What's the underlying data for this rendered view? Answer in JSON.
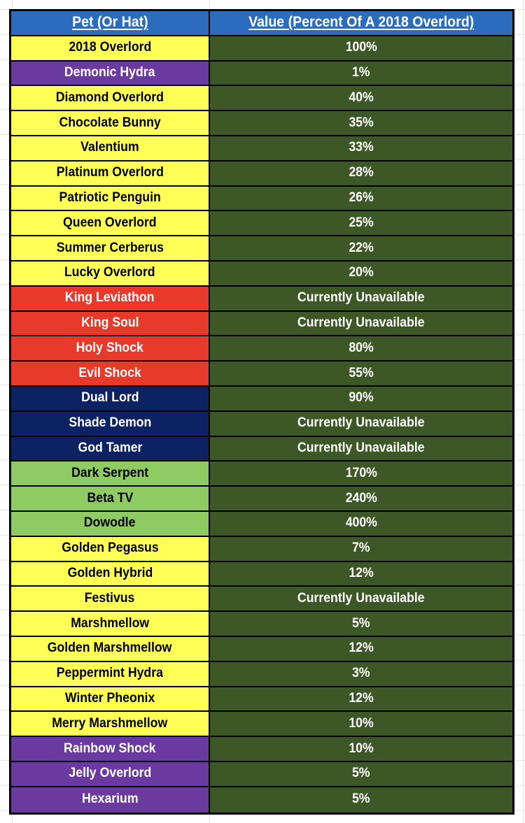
{
  "sheet": {
    "background": "#ffffff",
    "gridline_color": "#e2e2e2",
    "border_color": "#000000"
  },
  "table": {
    "header": {
      "pet_label": "Pet (Or Hat)",
      "value_label": "Value (Percent Of A 2018 Overlord)",
      "background": "#2b6cbe",
      "text_color": "#ffffff"
    },
    "value_column": {
      "background": "#3d5727",
      "text_color": "#ffffff"
    },
    "palette": {
      "yellow": {
        "bg": "#ffff55",
        "text": "#000000"
      },
      "purple": {
        "bg": "#6b3aa0",
        "text": "#ffffff"
      },
      "red": {
        "bg": "#e8392b",
        "text": "#ffffff"
      },
      "navy": {
        "bg": "#0d2262",
        "text": "#ffffff"
      },
      "green": {
        "bg": "#8ecb63",
        "text": "#000000"
      }
    },
    "rows": [
      {
        "pet": "2018 Overlord",
        "value": "100%",
        "color": "yellow"
      },
      {
        "pet": "Demonic Hydra",
        "value": "1%",
        "color": "purple"
      },
      {
        "pet": "Diamond Overlord",
        "value": "40%",
        "color": "yellow"
      },
      {
        "pet": "Chocolate Bunny",
        "value": "35%",
        "color": "yellow"
      },
      {
        "pet": "Valentium",
        "value": "33%",
        "color": "yellow"
      },
      {
        "pet": "Platinum Overlord",
        "value": "28%",
        "color": "yellow"
      },
      {
        "pet": "Patriotic Penguin",
        "value": "26%",
        "color": "yellow"
      },
      {
        "pet": "Queen Overlord",
        "value": "25%",
        "color": "yellow"
      },
      {
        "pet": "Summer Cerberus",
        "value": "22%",
        "color": "yellow"
      },
      {
        "pet": "Lucky Overlord",
        "value": "20%",
        "color": "yellow"
      },
      {
        "pet": "King Leviathon",
        "value": "Currently Unavailable",
        "color": "red"
      },
      {
        "pet": "King Soul",
        "value": "Currently Unavailable",
        "color": "red"
      },
      {
        "pet": "Holy Shock",
        "value": "80%",
        "color": "red"
      },
      {
        "pet": "Evil Shock",
        "value": "55%",
        "color": "red"
      },
      {
        "pet": "Dual Lord",
        "value": "90%",
        "color": "navy"
      },
      {
        "pet": "Shade Demon",
        "value": "Currently Unavailable",
        "color": "navy"
      },
      {
        "pet": "God Tamer",
        "value": "Currently Unavailable",
        "color": "navy"
      },
      {
        "pet": "Dark Serpent",
        "value": "170%",
        "color": "green"
      },
      {
        "pet": "Beta TV",
        "value": "240%",
        "color": "green"
      },
      {
        "pet": "Dowodle",
        "value": "400%",
        "color": "green"
      },
      {
        "pet": "Golden Pegasus",
        "value": "7%",
        "color": "yellow"
      },
      {
        "pet": "Golden Hybrid",
        "value": "12%",
        "color": "yellow"
      },
      {
        "pet": "Festivus",
        "value": "Currently Unavailable",
        "color": "yellow"
      },
      {
        "pet": "Marshmellow",
        "value": "5%",
        "color": "yellow"
      },
      {
        "pet": "Golden Marshmellow",
        "value": "12%",
        "color": "yellow"
      },
      {
        "pet": "Peppermint Hydra",
        "value": "3%",
        "color": "yellow"
      },
      {
        "pet": "Winter Pheonix",
        "value": "12%",
        "color": "yellow"
      },
      {
        "pet": "Merry Marshmellow",
        "value": "10%",
        "color": "yellow"
      },
      {
        "pet": "Rainbow Shock",
        "value": "10%",
        "color": "purple"
      },
      {
        "pet": "Jelly Overlord",
        "value": "5%",
        "color": "purple"
      },
      {
        "pet": "Hexarium",
        "value": "5%",
        "color": "purple"
      }
    ]
  }
}
